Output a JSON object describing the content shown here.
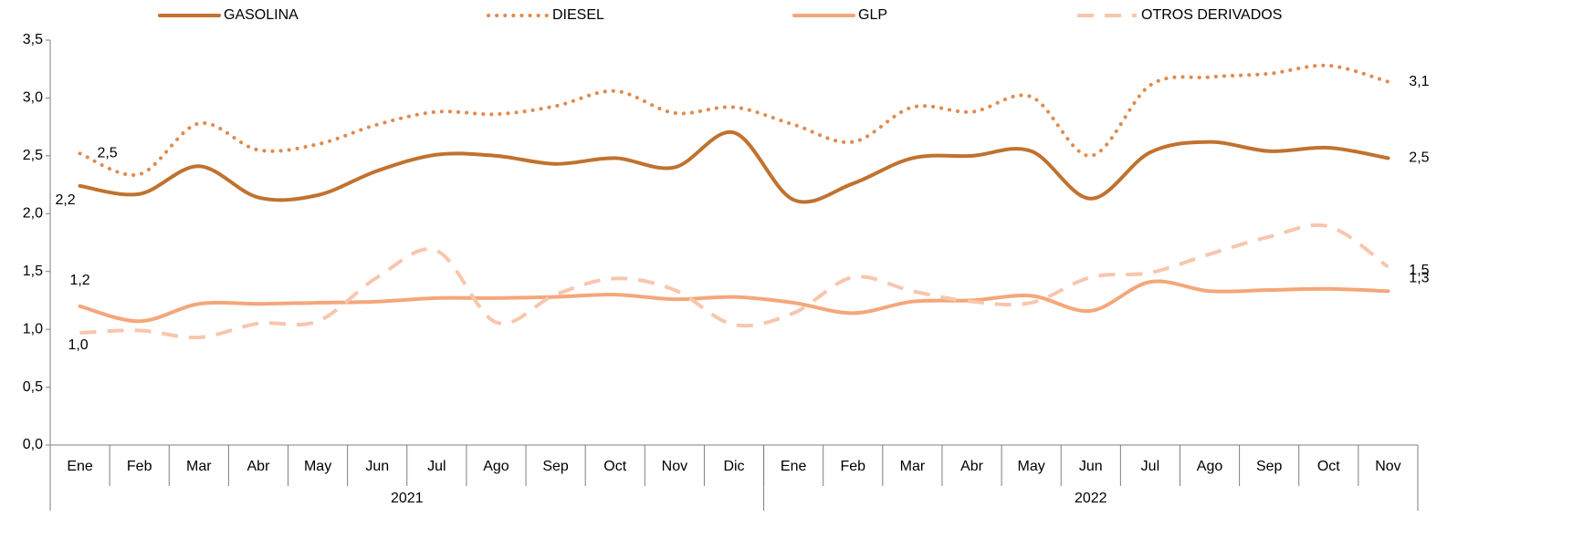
{
  "chart_data": {
    "type": "line",
    "categories": [
      "Ene",
      "Feb",
      "Mar",
      "Abr",
      "May",
      "Jun",
      "Jul",
      "Ago",
      "Sep",
      "Oct",
      "Nov",
      "Dic",
      "Ene",
      "Feb",
      "Mar",
      "Abr",
      "May",
      "Jun",
      "Jul",
      "Ago",
      "Sep",
      "Oct",
      "Nov"
    ],
    "groups": [
      {
        "label": "2021",
        "size": 12
      },
      {
        "label": "2022",
        "size": 11
      }
    ],
    "ylim": [
      0,
      3.5
    ],
    "yticks": [
      {
        "value": 0,
        "label": "0,0"
      },
      {
        "value": 0.5,
        "label": "0,5"
      },
      {
        "value": 1,
        "label": "1,0"
      },
      {
        "value": 1.5,
        "label": "1,5"
      },
      {
        "value": 2,
        "label": "2,0"
      },
      {
        "value": 2.5,
        "label": "2,5"
      },
      {
        "value": 3,
        "label": "3,0"
      },
      {
        "value": 3.5,
        "label": "3,5"
      }
    ],
    "grid": false,
    "legend": "top",
    "series": [
      {
        "name": "GASOLINA",
        "color": "#c0722f",
        "style": "solid",
        "values": [
          2.24,
          2.17,
          2.41,
          2.14,
          2.16,
          2.37,
          2.51,
          2.5,
          2.43,
          2.48,
          2.4,
          2.7,
          2.12,
          2.26,
          2.48,
          2.5,
          2.54,
          2.13,
          2.53,
          2.62,
          2.54,
          2.57,
          2.48
        ],
        "value_labels": [
          "2,2",
          null,
          null,
          null,
          null,
          null,
          null,
          null,
          null,
          null,
          null,
          null,
          null,
          null,
          null,
          null,
          null,
          null,
          null,
          null,
          null,
          null,
          "2,5"
        ]
      },
      {
        "name": "DIESEL",
        "color": "#e2894b",
        "style": "dotted",
        "values": [
          2.52,
          2.34,
          2.78,
          2.55,
          2.6,
          2.77,
          2.88,
          2.86,
          2.93,
          3.06,
          2.87,
          2.92,
          2.77,
          2.62,
          2.92,
          2.88,
          3.01,
          2.5,
          3.11,
          3.18,
          3.21,
          3.28,
          3.14
        ],
        "value_labels": [
          "2,5",
          null,
          null,
          null,
          null,
          null,
          null,
          null,
          null,
          null,
          null,
          null,
          null,
          null,
          null,
          null,
          null,
          null,
          null,
          null,
          null,
          null,
          "3,1"
        ]
      },
      {
        "name": "GLP",
        "color": "#f4a77a",
        "style": "solid",
        "values": [
          1.2,
          1.07,
          1.22,
          1.22,
          1.23,
          1.24,
          1.27,
          1.27,
          1.28,
          1.3,
          1.26,
          1.28,
          1.23,
          1.14,
          1.24,
          1.25,
          1.29,
          1.16,
          1.41,
          1.33,
          1.34,
          1.35,
          1.33
        ],
        "value_labels": [
          "1,2",
          null,
          null,
          null,
          null,
          null,
          null,
          null,
          null,
          null,
          null,
          null,
          null,
          null,
          null,
          null,
          null,
          null,
          null,
          null,
          null,
          null,
          "1,3"
        ]
      },
      {
        "name": "OTROS DERIVADOS",
        "color": "#f8c6ad",
        "style": "dashed",
        "values": [
          0.97,
          0.99,
          0.93,
          1.05,
          1.07,
          1.45,
          1.68,
          1.06,
          1.3,
          1.44,
          1.34,
          1.04,
          1.14,
          1.45,
          1.33,
          1.24,
          1.23,
          1.45,
          1.49,
          1.65,
          1.8,
          1.89,
          1.54
        ],
        "value_labels": [
          "1,0",
          null,
          null,
          null,
          null,
          null,
          null,
          null,
          null,
          null,
          null,
          null,
          null,
          null,
          null,
          null,
          null,
          null,
          null,
          null,
          null,
          null,
          "1,5"
        ]
      }
    ]
  }
}
